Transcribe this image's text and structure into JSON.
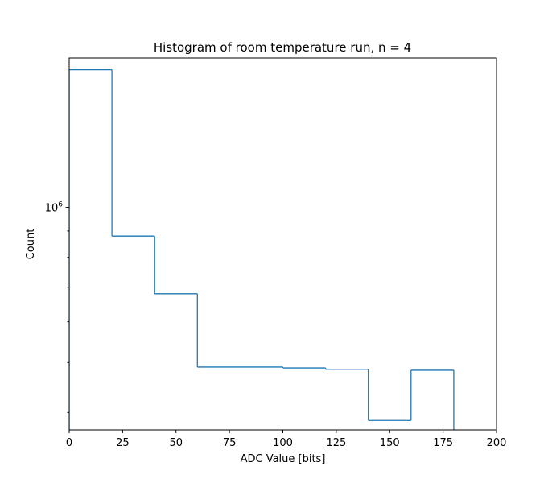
{
  "chart_data": {
    "type": "histogram",
    "title": "Histogram of room temperature run, n = 4",
    "xlabel": "ADC Value [bits]",
    "ylabel": "Count",
    "yscale": "log",
    "xlim": [
      0,
      200
    ],
    "ylim": [
      370000,
      1950000
    ],
    "x_ticks": [
      0,
      25,
      50,
      75,
      100,
      125,
      150,
      175,
      200
    ],
    "y_major_ticks": [
      {
        "value": 1000000,
        "base": "10",
        "exponent": "6"
      }
    ],
    "y_minor_ticks": [
      400000,
      500000,
      600000,
      700000,
      800000,
      900000
    ],
    "grid": false,
    "line_color": "#1f77b4",
    "bins": [
      {
        "start": 0,
        "end": 20,
        "count": 1850000
      },
      {
        "start": 20,
        "end": 40,
        "count": 880000
      },
      {
        "start": 40,
        "end": 60,
        "count": 680000
      },
      {
        "start": 60,
        "end": 100,
        "count": 490000
      },
      {
        "start": 100,
        "end": 120,
        "count": 488000
      },
      {
        "start": 120,
        "end": 140,
        "count": 485000
      },
      {
        "start": 140,
        "end": 160,
        "count": 386000
      },
      {
        "start": 160,
        "end": 180,
        "count": 483000
      }
    ]
  }
}
